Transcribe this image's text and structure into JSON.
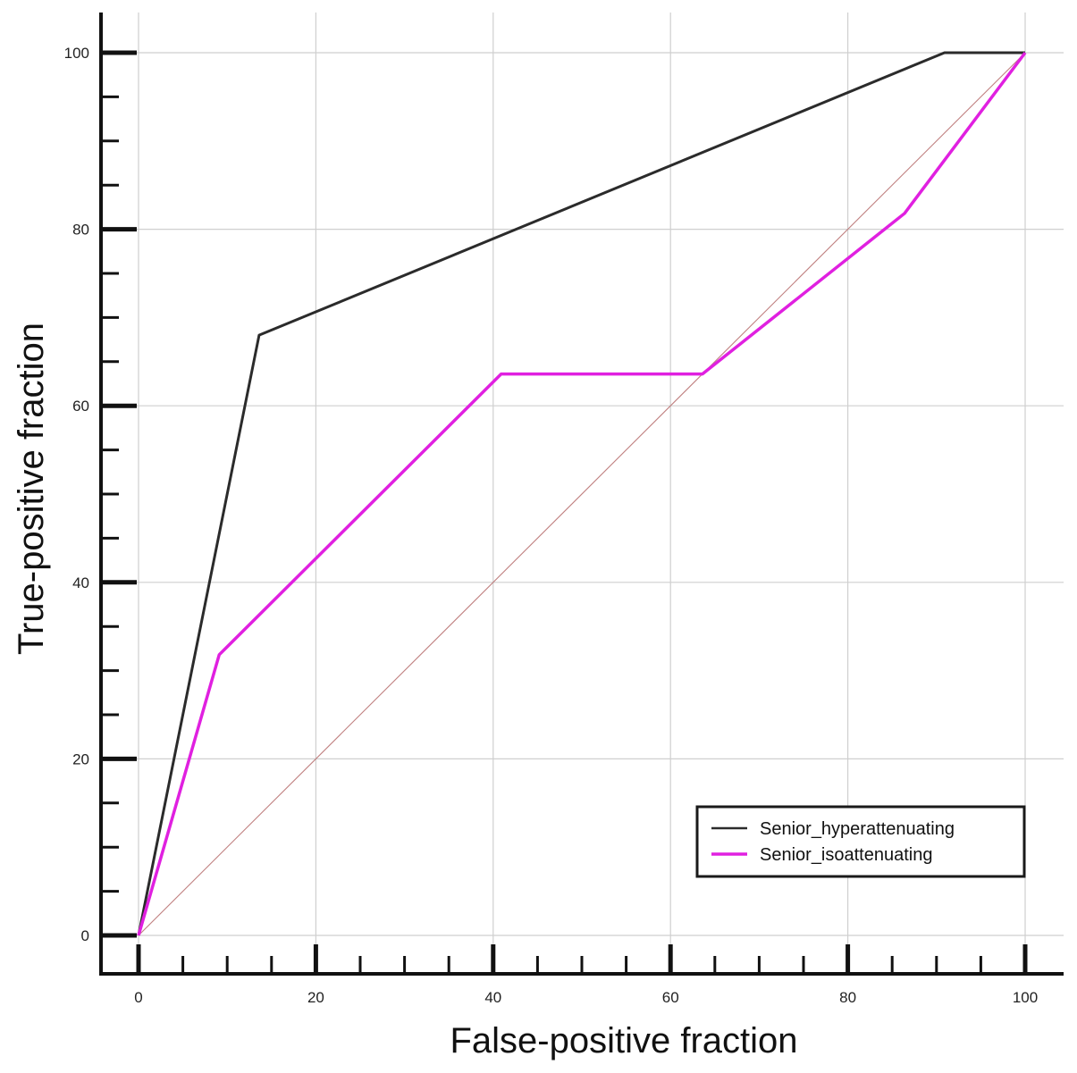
{
  "chart_data": {
    "type": "line",
    "title": "",
    "xlabel": "False-positive fraction",
    "ylabel": "True-positive fraction",
    "xlim": [
      0,
      100
    ],
    "ylim": [
      0,
      100
    ],
    "x_ticks": [
      0,
      20,
      40,
      60,
      80,
      100
    ],
    "y_ticks": [
      0,
      20,
      40,
      60,
      80,
      100
    ],
    "grid": true,
    "legend_position": "bottom-right",
    "series": [
      {
        "name": "Senior_hyperattenuating",
        "color": "#2b2b2b",
        "x": [
          0,
          13.6,
          90.9,
          100
        ],
        "y": [
          0,
          68.0,
          100,
          100
        ]
      },
      {
        "name": "Senior_isoattenuating",
        "color": "#e020e0",
        "x": [
          0,
          9.1,
          40.9,
          63.6,
          86.4,
          100
        ],
        "y": [
          0,
          31.8,
          63.6,
          63.6,
          81.8,
          100
        ]
      }
    ],
    "reference_line": {
      "color": "#c08080",
      "x": [
        0,
        100
      ],
      "y": [
        0,
        100
      ]
    }
  }
}
